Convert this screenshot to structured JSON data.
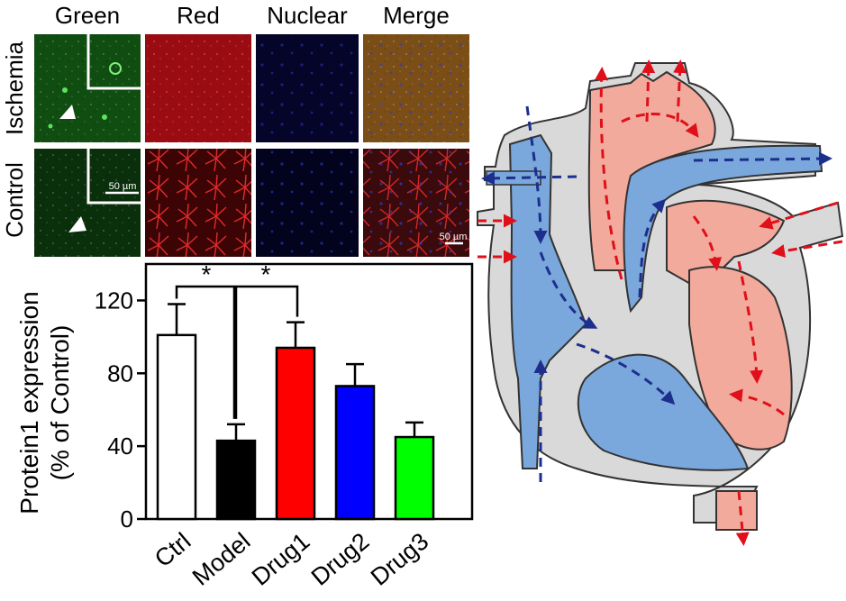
{
  "micrographs": {
    "columns": [
      "Green",
      "Red",
      "Nuclear",
      "Merge"
    ],
    "rows": [
      "Ischemia",
      "Control"
    ],
    "scale_bars": [
      "50 µm",
      "50 µm"
    ],
    "colors": {
      "green": "#1f8a1f",
      "red": "#b0121a",
      "nuclear": "#0a0a55",
      "merge_ischemia": "#8a5a1a",
      "merge_control": "#5a1a1a"
    }
  },
  "chart_data": {
    "type": "bar",
    "categories": [
      "Ctrl",
      "Model",
      "Drug1",
      "Drug2",
      "Drug3"
    ],
    "values": [
      101,
      43,
      94,
      73,
      45
    ],
    "errors": [
      17,
      9,
      14,
      12,
      8
    ],
    "bar_colors": [
      "#ffffff",
      "#000000",
      "#ff0000",
      "#0000ff",
      "#00ff00"
    ],
    "ylabel_lines": [
      "Protein1 expression",
      "(% of Control)"
    ],
    "ylim": [
      0,
      140
    ],
    "yticks": [
      0,
      40,
      80,
      120
    ],
    "significance": [
      {
        "from": "Ctrl",
        "to": "Model",
        "label": "*"
      },
      {
        "from": "Model",
        "to": "Drug1",
        "label": "*"
      }
    ]
  },
  "heart_diagram": {
    "colors": {
      "deoxygenated": "#6e9fd6",
      "oxygenated": "#f2a99c",
      "wall": "#d8d8d8",
      "outline": "#333333",
      "blue_arrow": "#1d2f8c",
      "red_arrow": "#e0101a"
    }
  }
}
